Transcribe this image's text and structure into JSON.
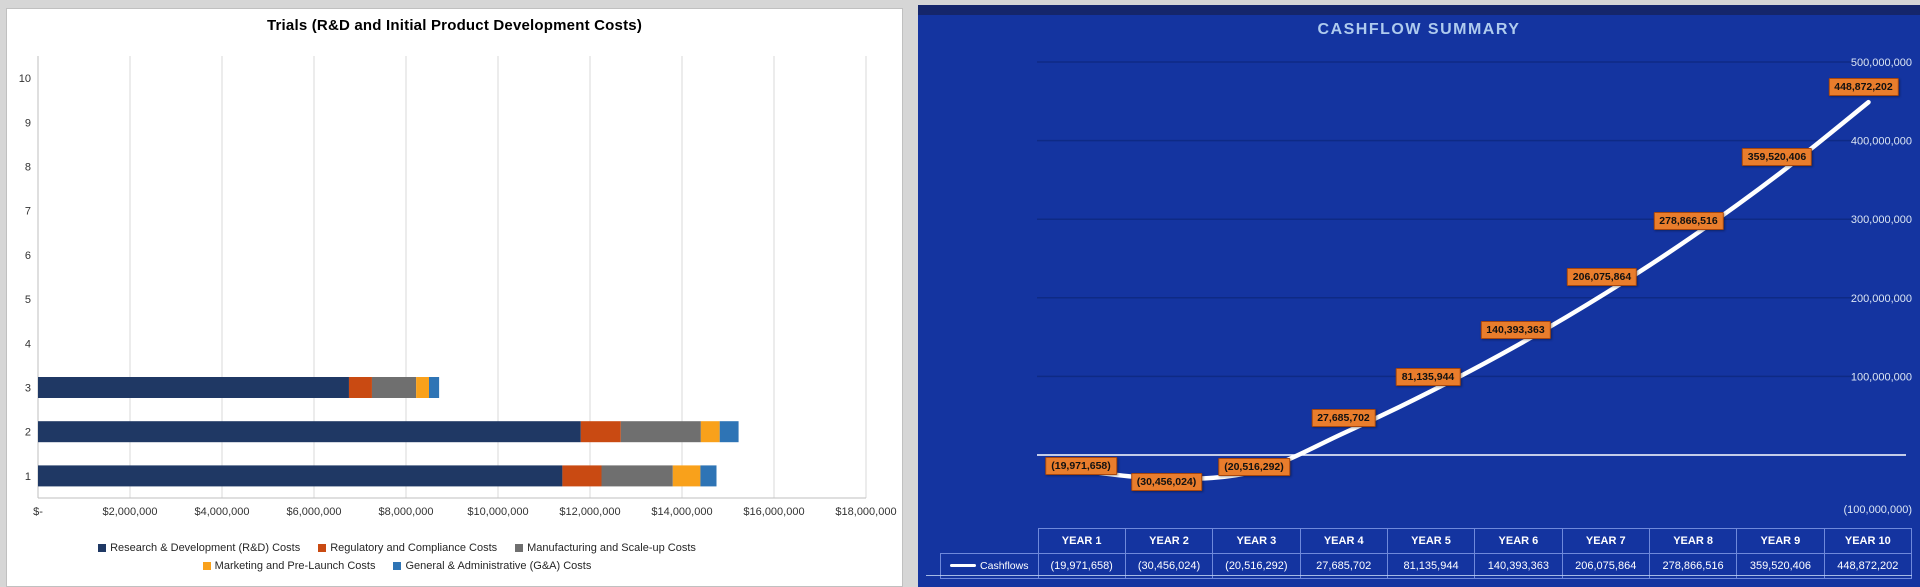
{
  "window": {
    "background": "#D6D6D6"
  },
  "chart_data": [
    {
      "type": "bar",
      "orientation": "horizontal",
      "title": "Trials (R&D and Initial Product Development Costs)",
      "categories": [
        "1",
        "2",
        "3",
        "4",
        "5",
        "6",
        "7",
        "8",
        "9",
        "10"
      ],
      "x_tick_labels": [
        "$-",
        "$2,000,000",
        "$4,000,000",
        "$6,000,000",
        "$8,000,000",
        "$10,000,000",
        "$12,000,000",
        "$14,000,000",
        "$16,000,000",
        "$18,000,000"
      ],
      "x_tick_values": [
        0,
        2000000,
        4000000,
        6000000,
        8000000,
        10000000,
        12000000,
        14000000,
        16000000,
        18000000
      ],
      "xlim": [
        0,
        18000000
      ],
      "grid": "vertical",
      "legend_position": "bottom",
      "series": [
        {
          "name": "Research & Development (R&D) Costs",
          "color": "#1F3864",
          "values": [
            11400000,
            11800000,
            6760000,
            0,
            0,
            0,
            0,
            0,
            0,
            0
          ]
        },
        {
          "name": "Regulatory and Compliance Costs",
          "color": "#C94A12",
          "values": [
            850000,
            870000,
            500000,
            0,
            0,
            0,
            0,
            0,
            0,
            0
          ]
        },
        {
          "name": "Manufacturing and Scale-up Costs",
          "color": "#6F6F6F",
          "values": [
            1550000,
            1740000,
            960000,
            0,
            0,
            0,
            0,
            0,
            0,
            0
          ]
        },
        {
          "name": "Marketing and Pre-Launch Costs",
          "color": "#F9A11B",
          "values": [
            600000,
            410000,
            280000,
            0,
            0,
            0,
            0,
            0,
            0,
            0
          ]
        },
        {
          "name": "General & Administrative (G&A) Costs",
          "color": "#2E74B5",
          "values": [
            350000,
            410000,
            220000,
            0,
            0,
            0,
            0,
            0,
            0,
            0
          ]
        }
      ],
      "colors": {
        "background": "#FFFFFF",
        "gridline": "#D9D9D9",
        "axis_line": "#BFBFBF",
        "axis_text": "#333333"
      }
    },
    {
      "type": "line",
      "title": "CASHFLOW SUMMARY",
      "categories": [
        "YEAR 1",
        "YEAR 2",
        "YEAR 3",
        "YEAR 4",
        "YEAR 5",
        "YEAR 6",
        "YEAR 7",
        "YEAR 8",
        "YEAR 9",
        "YEAR 10"
      ],
      "series": [
        {
          "name": "Cashflows",
          "color": "#FFFFFF",
          "values": [
            -19971658,
            -30456024,
            -20516292,
            27685702,
            81135944,
            140393363,
            206075864,
            278866516,
            359520406,
            448872202
          ]
        }
      ],
      "data_labels": [
        "(19,971,658)",
        "(30,456,024)",
        "(20,516,292)",
        "27,685,702",
        "81,135,944",
        "140,393,363",
        "206,075,864",
        "278,866,516",
        "359,520,406",
        "448,872,202"
      ],
      "y_tick_values": [
        500000000,
        400000000,
        300000000,
        200000000,
        100000000,
        -100000000
      ],
      "y_tick_labels": [
        "500,000,000",
        "400,000,000",
        "300,000,000",
        "200,000,000",
        "100,000,000",
        "(100,000,000)"
      ],
      "ylim": [
        -100000000,
        500000000
      ],
      "grid": "horizontal",
      "legend_position": "bottom-table",
      "colors": {
        "background": "#1434A0",
        "top_strip": "#15266B",
        "gridline": "#0E2A85",
        "zero_line": "#FFFFFF",
        "line": "#FFFFFF",
        "data_label_fill": "#E97D2C",
        "data_label_border": "#A8470D",
        "table_border": "#6F89DB",
        "title_text": "#AFCBEE",
        "axis_text": "#DCE6F5"
      }
    }
  ]
}
